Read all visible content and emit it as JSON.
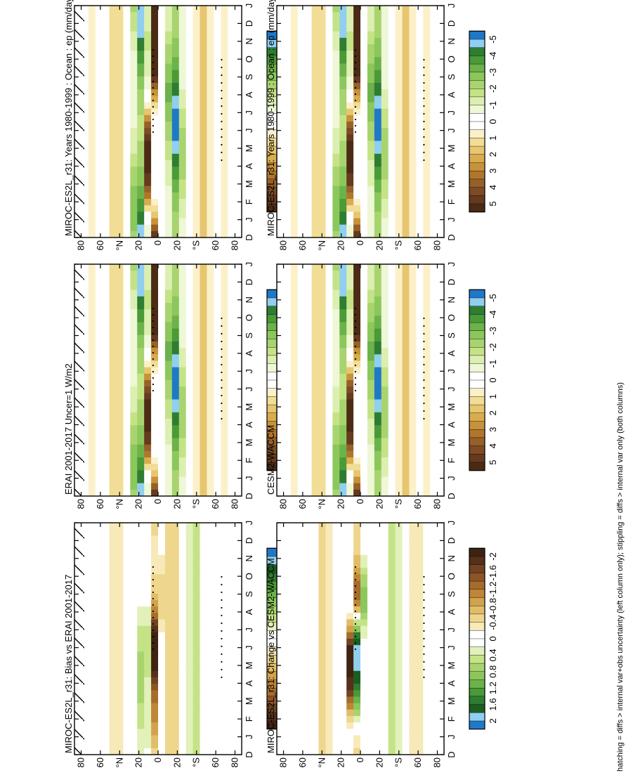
{
  "footnote": "hatching = diffs > internal var+obs uncertainty (left column only); stippling = diffs > internal var only (both columns)",
  "chart_data": [
    {
      "type": "heatmap",
      "title": "MIROC-ES2L_r31: Years 1980-1999 : Ocean : ep (mm/day)",
      "x_ticks": [
        "D",
        "J",
        "F",
        "M",
        "A",
        "M",
        "J",
        "J",
        "A",
        "S",
        "O",
        "N",
        "D",
        "J"
      ],
      "y_ticks": [
        "80",
        "60",
        "°N",
        "20",
        "0",
        "20",
        "°S",
        "60",
        "80"
      ],
      "colorbar": {
        "labels": [
          "5",
          "4",
          "3",
          "2",
          "1",
          "0",
          "-1",
          "-2",
          "-3",
          "-4",
          "-5"
        ],
        "range": [
          -5.5,
          5.5
        ],
        "reversed": false
      },
      "field": "mean",
      "hatching": true,
      "stippling": true
    },
    {
      "type": "heatmap",
      "title": "MIROC-ES2L_r31: Years 1980-1999 : Ocean : ep (mm/day)",
      "x_ticks": [
        "D",
        "J",
        "F",
        "M",
        "A",
        "M",
        "J",
        "J",
        "A",
        "S",
        "O",
        "N",
        "D",
        "J"
      ],
      "y_ticks": [
        "80",
        "60",
        "°N",
        "20",
        "0",
        "20",
        "°S",
        "60",
        "80"
      ],
      "colorbar": {
        "labels": [
          "5",
          "4",
          "3",
          "2",
          "1",
          "0",
          "-1",
          "-2",
          "-3",
          "-4",
          "-5"
        ],
        "range": [
          -5.5,
          5.5
        ],
        "reversed": false
      },
      "field": "mean",
      "hatching": false,
      "stippling": true
    },
    {
      "type": "heatmap",
      "title": "ERAI 2001-2017 Uncer=1 W/m2",
      "x_ticks": [
        "D",
        "J",
        "F",
        "M",
        "A",
        "M",
        "J",
        "J",
        "A",
        "S",
        "O",
        "N",
        "D",
        "J"
      ],
      "y_ticks": [
        "80",
        "60",
        "°N",
        "20",
        "0",
        "20",
        "°S",
        "60",
        "80"
      ],
      "colorbar": {
        "labels": [
          "5",
          "4",
          "3",
          "2",
          "1",
          "0",
          "-1",
          "-2",
          "-3",
          "-4",
          "-5"
        ],
        "range": [
          -5.5,
          5.5
        ],
        "reversed": false
      },
      "field": "mean",
      "hatching": true,
      "stippling": true
    },
    {
      "type": "heatmap",
      "title": "CESM2-WACCM",
      "x_ticks": [
        "D",
        "J",
        "F",
        "M",
        "A",
        "M",
        "J",
        "J",
        "A",
        "S",
        "O",
        "N",
        "D",
        "J"
      ],
      "y_ticks": [
        "80",
        "60",
        "°N",
        "20",
        "0",
        "20",
        "°S",
        "60",
        "80"
      ],
      "colorbar": {
        "labels": [
          "5",
          "4",
          "3",
          "2",
          "1",
          "0",
          "-1",
          "-2",
          "-3",
          "-4",
          "-5"
        ],
        "range": [
          -5.5,
          5.5
        ],
        "reversed": false
      },
      "field": "mean",
      "hatching": false,
      "stippling": true
    },
    {
      "type": "heatmap",
      "title": "MIROC-ES2L_r31: Bias vs ERAI 2001-2017",
      "x_ticks": [
        "D",
        "J",
        "F",
        "M",
        "A",
        "M",
        "J",
        "J",
        "A",
        "S",
        "O",
        "N",
        "D",
        "J"
      ],
      "y_ticks": [
        "80",
        "60",
        "°N",
        "20",
        "0",
        "20",
        "°S",
        "60",
        "80"
      ],
      "colorbar": {
        "labels": [
          "2",
          "1.6",
          "1.2",
          "0.8",
          "0.4",
          "0",
          "-0.4",
          "-0.8",
          "-1.2",
          "-1.6",
          "-2"
        ],
        "range": [
          -2.2,
          2.2
        ],
        "reversed": false
      },
      "field": "bias",
      "hatching": true,
      "stippling": true
    },
    {
      "type": "heatmap",
      "title": "MIROC-ES2L_r31: Change vs CESM2-WACCM",
      "x_ticks": [
        "D",
        "J",
        "F",
        "M",
        "A",
        "M",
        "J",
        "J",
        "A",
        "S",
        "O",
        "N",
        "D",
        "J"
      ],
      "y_ticks": [
        "80",
        "60",
        "°N",
        "20",
        "0",
        "20",
        "°S",
        "60",
        "80"
      ],
      "colorbar": {
        "labels": [
          "2",
          "1.6",
          "1.2",
          "0.8",
          "0.4",
          "0",
          "-0.4",
          "-0.8",
          "-1.2",
          "-1.6",
          "-2"
        ],
        "range": [
          -2.2,
          2.2
        ],
        "reversed": true
      },
      "field": "change",
      "hatching": false,
      "stippling": true
    }
  ]
}
